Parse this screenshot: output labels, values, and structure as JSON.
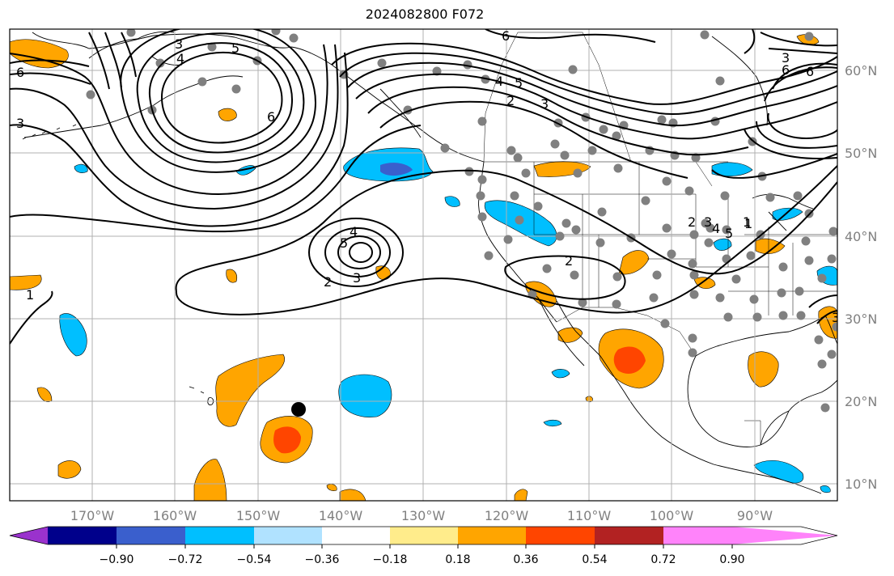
{
  "title": "2024082800 F072",
  "map": {
    "lon_labels": [
      "170°W",
      "160°W",
      "150°W",
      "140°W",
      "130°W",
      "120°W",
      "110°W",
      "100°W",
      "90°W"
    ],
    "lat_labels": [
      "60°N",
      "50°N",
      "40°N",
      "30°N",
      "20°N",
      "10°N"
    ],
    "contour_labels": [
      "1",
      "2",
      "3",
      "4",
      "5",
      "6",
      "3",
      "6",
      "3",
      "4",
      "5",
      "2",
      "3",
      "4",
      "5",
      "6",
      "6",
      "3",
      "4",
      "5",
      "2",
      "3",
      "1",
      "6",
      "3",
      "2",
      "1"
    ]
  },
  "colorbar": {
    "tick_labels": [
      "−0.90",
      "−0.72",
      "−0.54",
      "−0.36",
      "−0.18",
      "0.18",
      "0.36",
      "0.54",
      "0.72",
      "0.90"
    ],
    "colors": [
      "#9a32cd",
      "#00008b",
      "#3a5fcd",
      "#00bfff",
      "#b0e2ff",
      "#ffffff",
      "#ffec8b",
      "#ffa500",
      "#ff4500",
      "#b22222",
      "#ff83fa"
    ]
  },
  "legend_colors": {
    "positive_light": "#ffa500",
    "positive_strong": "#ff4500",
    "negative_light": "#00bfff",
    "negative_strong": "#3a5fcd",
    "station_dot": "#808080",
    "marker": "#000000"
  }
}
